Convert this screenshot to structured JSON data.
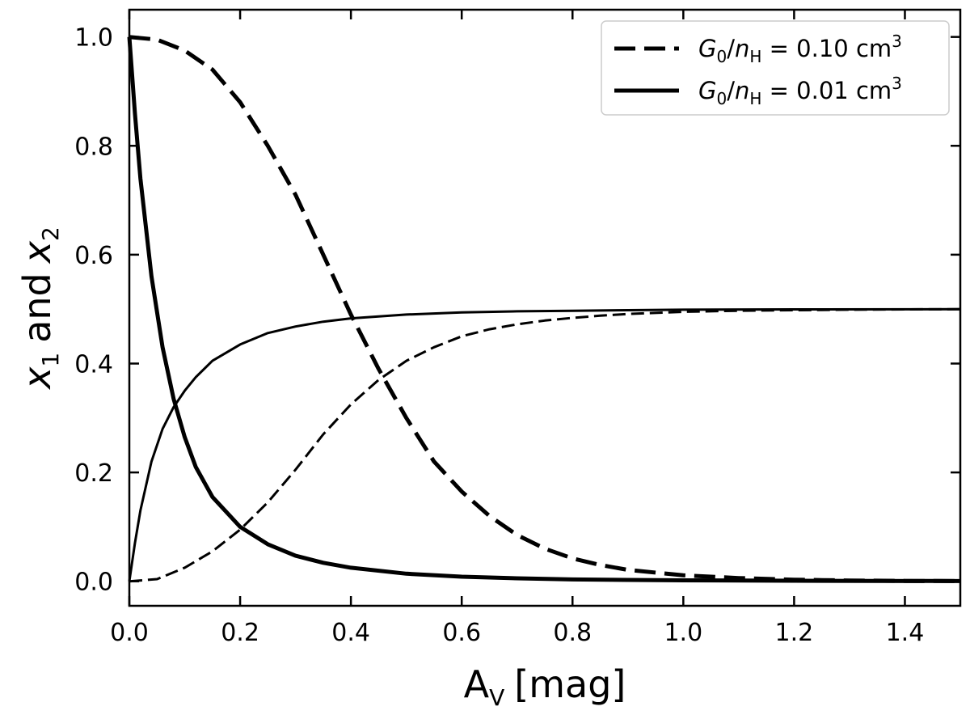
{
  "chart_data": {
    "type": "line",
    "xlabel": "A",
    "xlabel_sub": "V",
    "xlabel_unit": "[mag]",
    "ylabel_parts": {
      "var1": "x",
      "sub1": "1",
      "mid": "and",
      "var2": "x",
      "sub2": "2"
    },
    "xlim": [
      0.0,
      1.5
    ],
    "ylim": [
      -0.045,
      1.05
    ],
    "xticks": [
      "0.0",
      "0.2",
      "0.4",
      "0.6",
      "0.8",
      "1.0",
      "1.2",
      "1.4"
    ],
    "yticks": [
      "0.0",
      "0.2",
      "0.4",
      "0.6",
      "0.8",
      "1.0"
    ],
    "grid": false,
    "legend_position": "top-right",
    "legend": [
      {
        "style": "dashed",
        "g": "G",
        "g_sub": "0",
        "n": "n",
        "n_sub": "H",
        "value": " = 0.10 cm",
        "unit_sup": "3"
      },
      {
        "style": "solid",
        "g": "G",
        "g_sub": "0",
        "n": "n",
        "n_sub": "H",
        "value": " = 0.01 cm",
        "unit_sup": "3"
      }
    ],
    "series": [
      {
        "style": "dashed",
        "weight": "thick",
        "curve": "x1",
        "x": [
          0,
          0.05,
          0.1,
          0.15,
          0.2,
          0.25,
          0.3,
          0.35,
          0.4,
          0.45,
          0.5,
          0.55,
          0.6,
          0.65,
          0.7,
          0.75,
          0.8,
          0.85,
          0.9,
          1.0,
          1.1,
          1.2,
          1.3,
          1.4,
          1.5
        ],
        "y": [
          1.0,
          0.995,
          0.975,
          0.94,
          0.88,
          0.8,
          0.71,
          0.6,
          0.49,
          0.39,
          0.3,
          0.22,
          0.165,
          0.12,
          0.085,
          0.06,
          0.042,
          0.03,
          0.021,
          0.011,
          0.006,
          0.003,
          0.0015,
          0.0008,
          0.0004
        ]
      },
      {
        "style": "dashed",
        "weight": "thin",
        "curve": "x2",
        "x": [
          0,
          0.05,
          0.1,
          0.15,
          0.2,
          0.25,
          0.3,
          0.35,
          0.4,
          0.45,
          0.5,
          0.55,
          0.6,
          0.65,
          0.7,
          0.75,
          0.8,
          0.85,
          0.9,
          1.0,
          1.1,
          1.2,
          1.3,
          1.4,
          1.5
        ],
        "y": [
          0.0,
          0.004,
          0.025,
          0.055,
          0.095,
          0.145,
          0.205,
          0.27,
          0.325,
          0.37,
          0.405,
          0.43,
          0.45,
          0.463,
          0.472,
          0.479,
          0.484,
          0.488,
          0.491,
          0.495,
          0.497,
          0.498,
          0.499,
          0.4995,
          0.4998
        ]
      },
      {
        "style": "solid",
        "weight": "thick",
        "curve": "x1",
        "x": [
          0,
          0.01,
          0.02,
          0.04,
          0.06,
          0.08,
          0.1,
          0.12,
          0.15,
          0.2,
          0.25,
          0.3,
          0.35,
          0.4,
          0.5,
          0.6,
          0.7,
          0.8,
          0.9,
          1.0,
          1.2,
          1.5
        ],
        "y": [
          1.0,
          0.86,
          0.74,
          0.56,
          0.43,
          0.335,
          0.265,
          0.21,
          0.155,
          0.1,
          0.068,
          0.047,
          0.034,
          0.025,
          0.014,
          0.0085,
          0.0055,
          0.0035,
          0.0025,
          0.0018,
          0.001,
          0.0005
        ]
      },
      {
        "style": "solid",
        "weight": "thin",
        "curve": "x2",
        "x": [
          0,
          0.01,
          0.02,
          0.04,
          0.06,
          0.08,
          0.1,
          0.12,
          0.15,
          0.2,
          0.25,
          0.3,
          0.35,
          0.4,
          0.5,
          0.6,
          0.7,
          0.8,
          0.9,
          1.0,
          1.2,
          1.5
        ],
        "y": [
          0.0,
          0.07,
          0.13,
          0.22,
          0.28,
          0.32,
          0.35,
          0.375,
          0.405,
          0.435,
          0.456,
          0.468,
          0.477,
          0.483,
          0.49,
          0.494,
          0.496,
          0.497,
          0.498,
          0.499,
          0.4995,
          0.4998
        ]
      }
    ]
  }
}
